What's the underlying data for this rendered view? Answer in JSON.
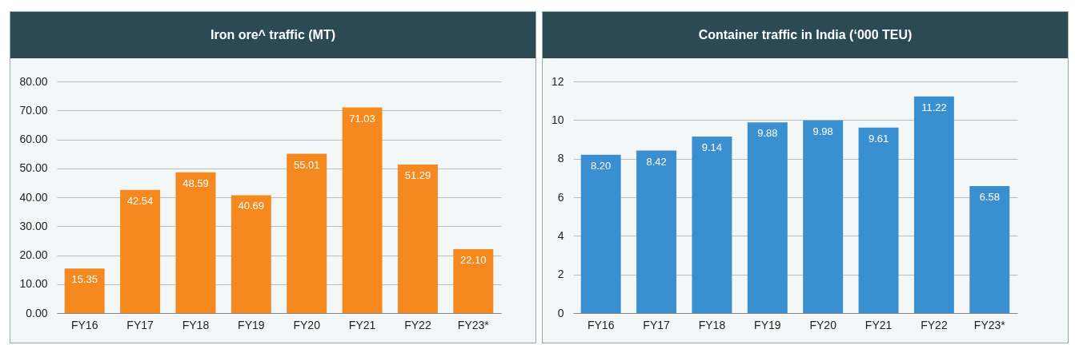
{
  "chart_data": [
    {
      "type": "bar",
      "title": "Iron ore^ traffic (MT)",
      "categories": [
        "FY16",
        "FY17",
        "FY18",
        "FY19",
        "FY20",
        "FY21",
        "FY22",
        "FY23*"
      ],
      "values": [
        15.35,
        42.54,
        48.59,
        40.69,
        55.01,
        71.03,
        51.29,
        22.1
      ],
      "value_labels": [
        "15.35",
        "42.54",
        "48.59",
        "40.69",
        "55.01",
        "71.03",
        "51.29",
        "22.10"
      ],
      "color": "#f5891f",
      "ylim": [
        0,
        80
      ],
      "yticks": [
        {
          "value": 0,
          "label": "0.00"
        },
        {
          "value": 10,
          "label": "10.00"
        },
        {
          "value": 20,
          "label": "20.00"
        },
        {
          "value": 30,
          "label": "30.00"
        },
        {
          "value": 40,
          "label": "40.00"
        },
        {
          "value": 50,
          "label": "50.00"
        },
        {
          "value": 60,
          "label": "60.00"
        },
        {
          "value": 70,
          "label": "70.00"
        },
        {
          "value": 80,
          "label": "80.00"
        }
      ],
      "grid": "y"
    },
    {
      "type": "bar",
      "title": "Container traffic in India (‘000 TEU)",
      "categories": [
        "FY16",
        "FY17",
        "FY18",
        "FY19",
        "FY20",
        "FY21",
        "FY22",
        "FY23*"
      ],
      "values": [
        8.2,
        8.42,
        9.14,
        9.88,
        9.98,
        9.61,
        11.22,
        6.58
      ],
      "value_labels": [
        "8.20",
        "8.42",
        "9.14",
        "9.88",
        "9.98",
        "9.61",
        "11.22",
        "6.58"
      ],
      "color": "#3a8fd0",
      "ylim": [
        0,
        12
      ],
      "yticks": [
        0,
        2,
        4,
        6,
        8,
        10,
        12
      ],
      "grid": "y"
    }
  ]
}
